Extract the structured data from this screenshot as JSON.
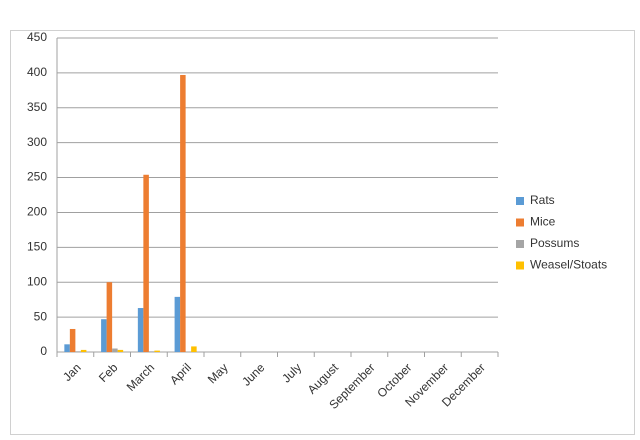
{
  "chart_data": {
    "type": "bar",
    "categories": [
      "Jan",
      "Feb",
      "March",
      "April",
      "May",
      "June",
      "July",
      "August",
      "September",
      "October",
      "November",
      "December"
    ],
    "series": [
      {
        "name": "Rats",
        "color": "#5b9bd5",
        "values": [
          11,
          47,
          63,
          79,
          null,
          null,
          null,
          null,
          null,
          null,
          null,
          null
        ]
      },
      {
        "name": "Mice",
        "color": "#ed7d31",
        "values": [
          33,
          100,
          254,
          397,
          null,
          null,
          null,
          null,
          null,
          null,
          null,
          null
        ]
      },
      {
        "name": "Possums",
        "color": "#a5a5a5",
        "values": [
          1,
          5,
          1,
          0,
          null,
          null,
          null,
          null,
          null,
          null,
          null,
          null
        ]
      },
      {
        "name": "Weasel/Stoats",
        "color": "#ffc000",
        "values": [
          3,
          3,
          2,
          8,
          null,
          null,
          null,
          null,
          null,
          null,
          null,
          null
        ]
      }
    ],
    "ylim": [
      0,
      450
    ],
    "yticks": [
      0,
      50,
      100,
      150,
      200,
      250,
      300,
      350,
      400,
      450
    ],
    "grid": true,
    "legend": "right"
  }
}
